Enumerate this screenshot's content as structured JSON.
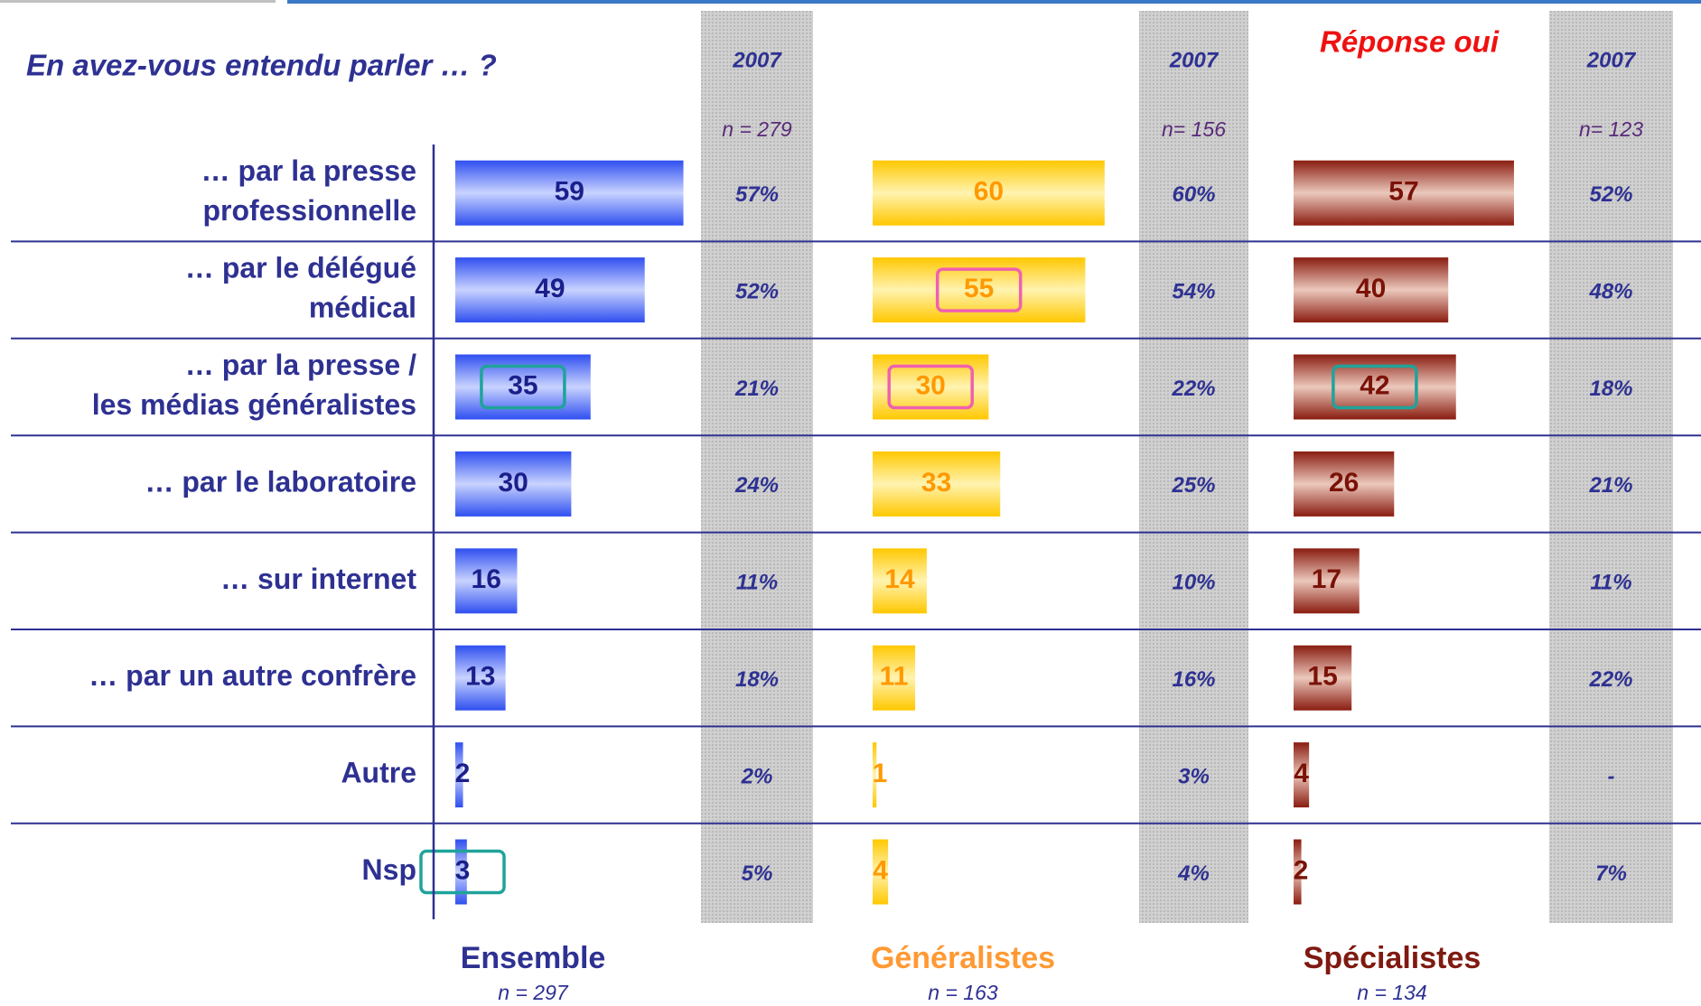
{
  "chart_data": {
    "type": "bar",
    "orientation": "horizontal",
    "title": "En avez-vous entendu parler … ?",
    "subtitle": "Réponse oui",
    "categories": [
      [
        "… par la presse",
        "professionnelle"
      ],
      [
        "… par le délégué",
        "médical"
      ],
      [
        "… par la presse /",
        "les médias généralistes"
      ],
      [
        "… par le laboratoire"
      ],
      [
        "… sur internet"
      ],
      [
        "… par un autre confrère"
      ],
      [
        "Autre"
      ],
      [
        "Nsp"
      ]
    ],
    "series": [
      {
        "name": "Ensemble",
        "n": "n = 297",
        "color": "#2f4ff0",
        "color2": "#c9d3ff",
        "label_color": "#1b1f8a",
        "name_color": "#2e3192",
        "values": [
          59,
          49,
          35,
          30,
          16,
          13,
          2,
          3
        ],
        "outline": [
          null,
          null,
          "#1fa39a",
          null,
          null,
          null,
          null,
          "#1fa39a"
        ],
        "previous": {
          "name": "2007",
          "n": "n = 279",
          "values": [
            57,
            52,
            21,
            24,
            11,
            18,
            2,
            5
          ],
          "value_labels": [
            "57%",
            "52%",
            "21%",
            "24%",
            "11%",
            "18%",
            "2%",
            "5%"
          ]
        }
      },
      {
        "name": "Généralistes",
        "n": "n = 163",
        "color": "#ffc800",
        "color2": "#fff3b0",
        "label_color": "#ff9900",
        "name_color": "#ff9933",
        "values": [
          60,
          55,
          30,
          33,
          14,
          11,
          1,
          4
        ],
        "outline": [
          null,
          "#f060b0",
          "#f060b0",
          null,
          null,
          null,
          null,
          null
        ],
        "previous": {
          "name": "2007",
          "n": "n= 156",
          "values": [
            60,
            54,
            22,
            25,
            10,
            16,
            3,
            4
          ],
          "value_labels": [
            "60%",
            "54%",
            "22%",
            "25%",
            "10%",
            "16%",
            "3%",
            "4%"
          ]
        }
      },
      {
        "name": "Spécialistes",
        "n": "n = 134",
        "color": "#8a1c10",
        "color2": "#ecc8bc",
        "label_color": "#7a1208",
        "name_color": "#7f1a10",
        "values": [
          57,
          40,
          42,
          26,
          17,
          15,
          4,
          2
        ],
        "outline": [
          null,
          null,
          "#1fa39a",
          null,
          null,
          null,
          null,
          null
        ],
        "previous": {
          "name": "2007",
          "n": "n= 123",
          "values": [
            52,
            48,
            18,
            21,
            11,
            22,
            null,
            7
          ],
          "value_labels": [
            "52%",
            "48%",
            "18%",
            "21%",
            "11%",
            "22%",
            "-",
            "7%"
          ]
        }
      }
    ]
  }
}
